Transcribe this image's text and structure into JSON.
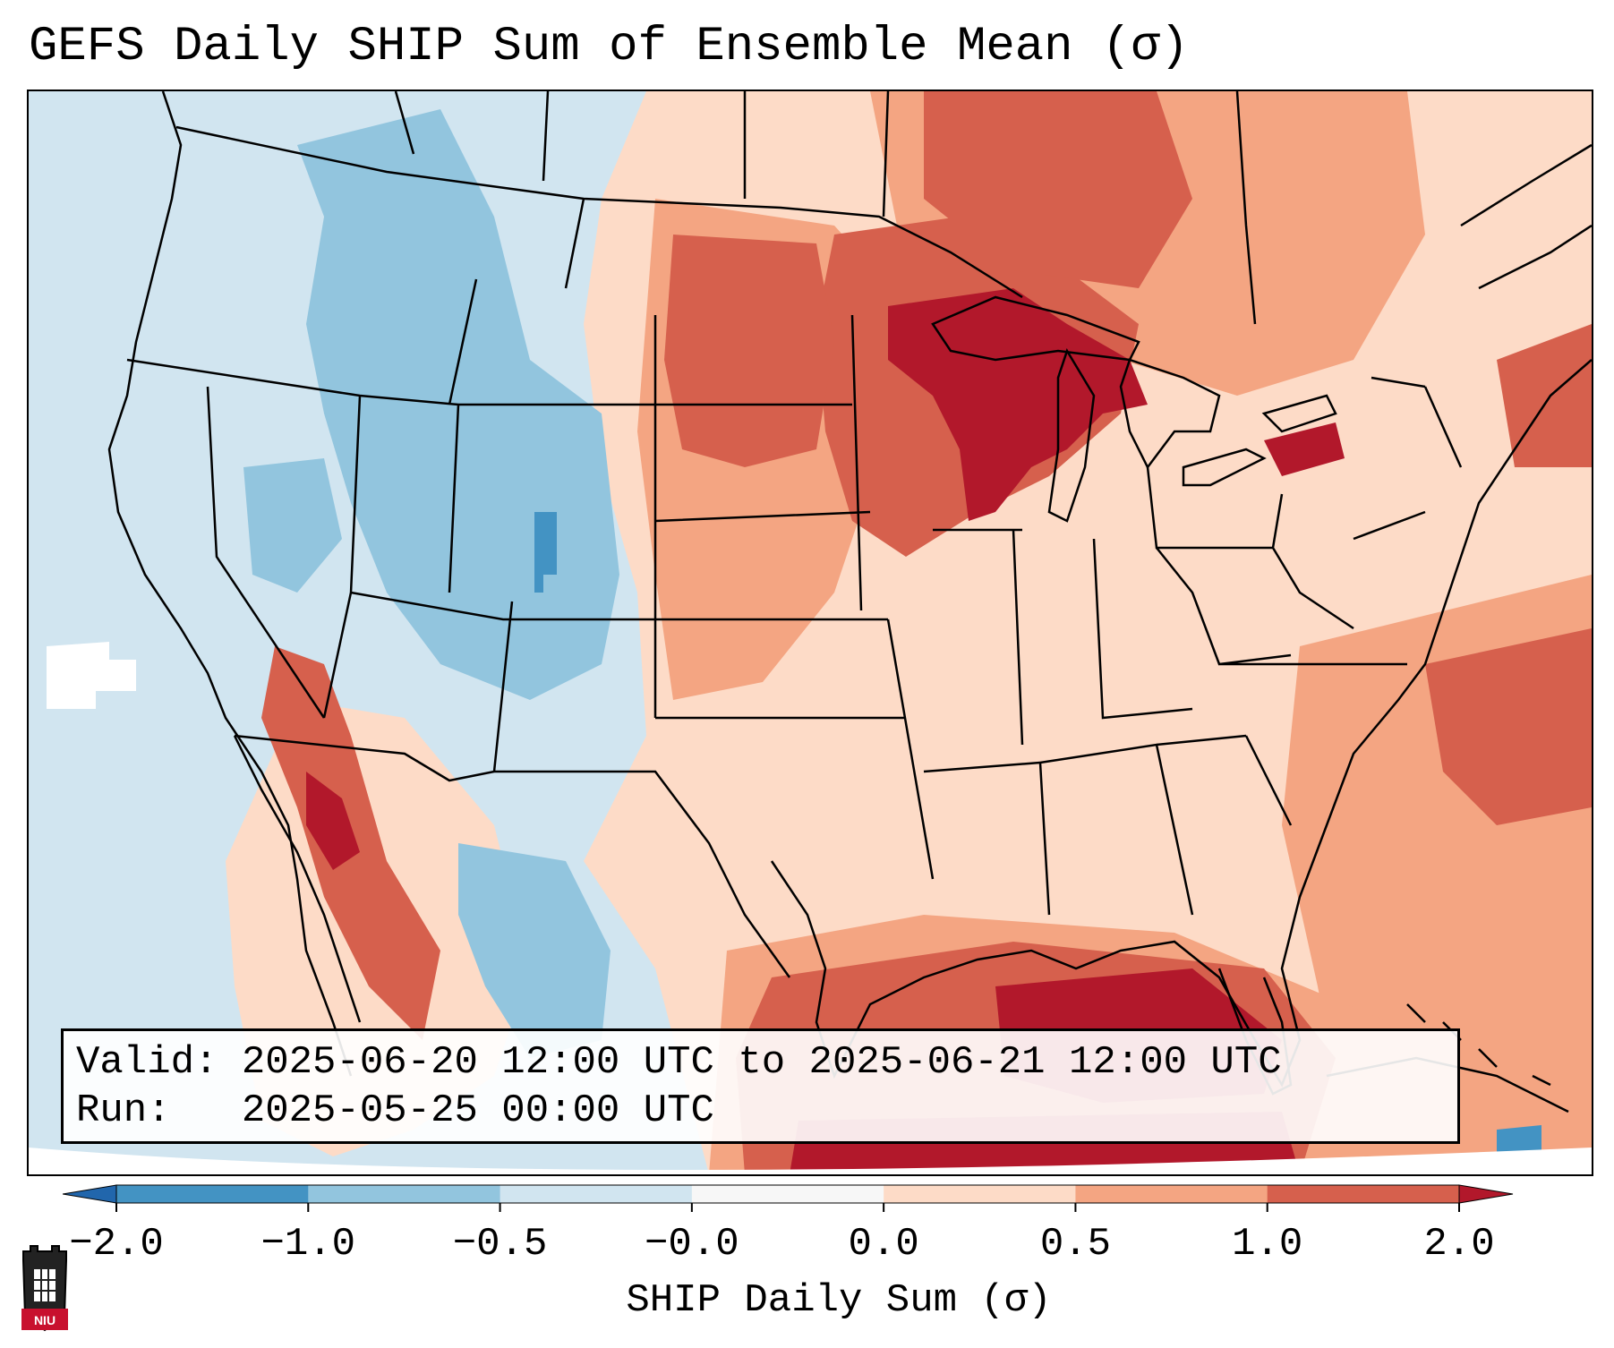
{
  "title": "GEFS Daily SHIP Sum of Ensemble Mean (σ)",
  "info": {
    "valid_label": "Valid:",
    "valid_value": "2025-06-20 12:00 UTC to 2025-06-21 12:00 UTC",
    "run_label": "Run:",
    "run_value": "2025-05-25 00:00 UTC"
  },
  "colorbar": {
    "label": "SHIP Daily Sum (σ)",
    "ticks": [
      "−2.0",
      "−1.0",
      "−0.5",
      "−0.0",
      "0.0",
      "0.5",
      "1.0",
      "2.0"
    ],
    "bins": [
      {
        "min": -2.0,
        "max": -1.0,
        "color": "#4393c3"
      },
      {
        "min": -1.0,
        "max": -0.5,
        "color": "#92c5de"
      },
      {
        "min": -0.5,
        "max": -0.0,
        "color": "#d1e5f0"
      },
      {
        "min": -0.0,
        "max": 0.0,
        "color": "#f7f7f7"
      },
      {
        "min": 0.0,
        "max": 0.5,
        "color": "#fddbc7"
      },
      {
        "min": 0.5,
        "max": 1.0,
        "color": "#f4a582"
      },
      {
        "min": 1.0,
        "max": 2.0,
        "color": "#d6604d"
      }
    ],
    "under_color": "#2166ac",
    "over_color": "#b2182b"
  },
  "logo": {
    "text": "NIU"
  },
  "colors": {
    "ocean_base": "#d1e5f0",
    "anom_light": "#fddbc7",
    "anom_mid": "#f4a582",
    "anom_strong": "#d6604d",
    "anom_extreme": "#b2182b",
    "neg_mid": "#92c5de",
    "neg_strong": "#4393c3"
  }
}
